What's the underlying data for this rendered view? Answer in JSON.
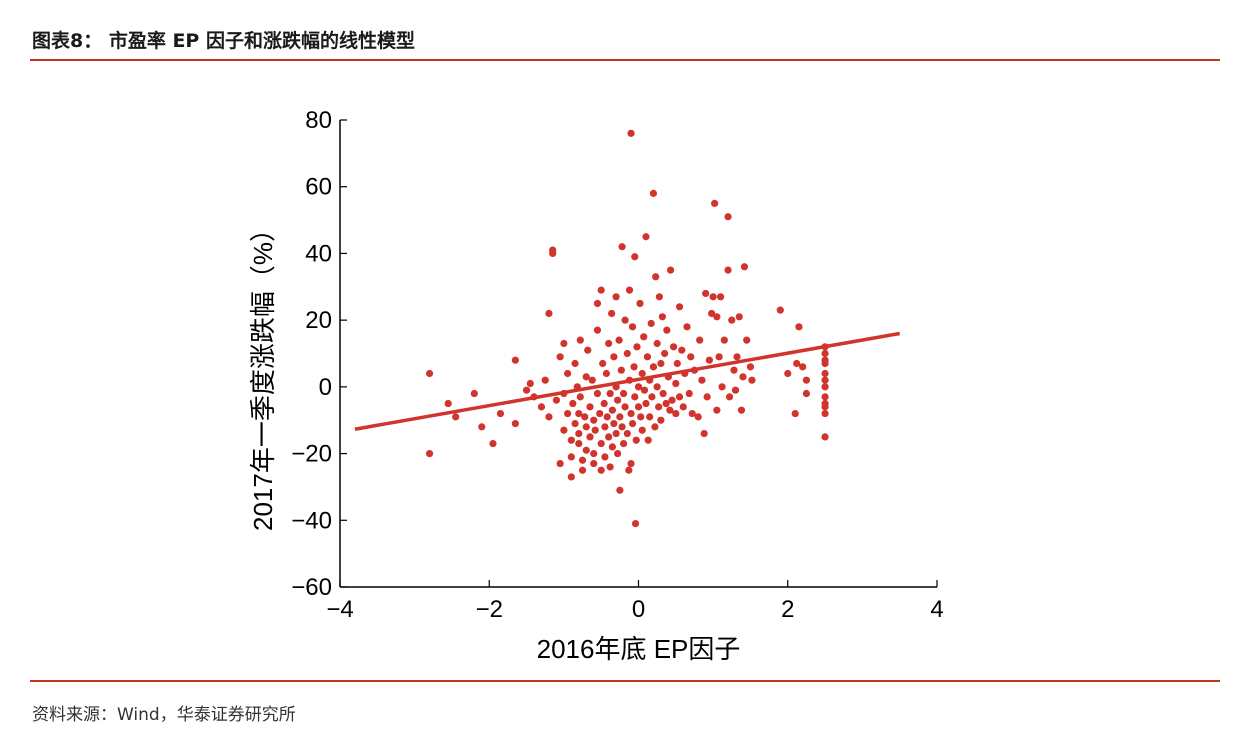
{
  "header": {
    "title": "图表8：  市盈率 EP 因子和涨跌幅的线性模型"
  },
  "footer": {
    "source": "资料来源：Wind，华泰证券研究所"
  },
  "colors": {
    "accent": "#c8321e",
    "points": "#d0342c",
    "fit_line": "#d0342c"
  },
  "chart_data": {
    "type": "scatter",
    "title": "",
    "xlabel": "2016年底 EP因子",
    "ylabel": "2017年一季度涨跌幅（%）",
    "xlim": [
      -4,
      4
    ],
    "ylim": [
      -60,
      80
    ],
    "xticks": [
      -4,
      -2,
      0,
      2,
      4
    ],
    "yticks": [
      -60,
      -40,
      -20,
      0,
      20,
      40,
      60,
      80
    ],
    "xtick_labels": [
      "−4",
      "−2",
      "0",
      "2",
      "4"
    ],
    "ytick_labels": [
      "−60",
      "−40",
      "−20",
      "0",
      "20",
      "40",
      "60",
      "80"
    ],
    "grid": false,
    "fit_line": {
      "x": [
        -3.8,
        3.5
      ],
      "y": [
        -12.7,
        16.0
      ]
    },
    "points": [
      [
        -2.8,
        4
      ],
      [
        -2.8,
        -20
      ],
      [
        -2.55,
        -5
      ],
      [
        -2.45,
        -9
      ],
      [
        -2.2,
        -2
      ],
      [
        -2.1,
        -12
      ],
      [
        -1.95,
        -17
      ],
      [
        -1.85,
        -8
      ],
      [
        -1.65,
        -11
      ],
      [
        -1.65,
        8
      ],
      [
        -1.5,
        -1
      ],
      [
        -1.45,
        1
      ],
      [
        -1.4,
        -3
      ],
      [
        -1.3,
        -6
      ],
      [
        -1.25,
        2
      ],
      [
        -1.2,
        -9
      ],
      [
        -1.2,
        22
      ],
      [
        -1.15,
        41
      ],
      [
        -1.15,
        40
      ],
      [
        -1.1,
        -4
      ],
      [
        -1.05,
        -23
      ],
      [
        -1.05,
        9
      ],
      [
        -1.0,
        -2
      ],
      [
        -1.0,
        -13
      ],
      [
        -1.0,
        13
      ],
      [
        -0.95,
        -8
      ],
      [
        -0.95,
        4
      ],
      [
        -0.9,
        -16
      ],
      [
        -0.9,
        -21
      ],
      [
        -0.9,
        -27
      ],
      [
        -0.88,
        -5
      ],
      [
        -0.85,
        7
      ],
      [
        -0.85,
        -11
      ],
      [
        -0.82,
        0
      ],
      [
        -0.8,
        -14
      ],
      [
        -0.8,
        -8
      ],
      [
        -0.8,
        -17
      ],
      [
        -0.78,
        14
      ],
      [
        -0.78,
        -3
      ],
      [
        -0.75,
        -22
      ],
      [
        -0.75,
        -25
      ],
      [
        -0.72,
        -9
      ],
      [
        -0.7,
        3
      ],
      [
        -0.7,
        -12
      ],
      [
        -0.7,
        -19
      ],
      [
        -0.68,
        11
      ],
      [
        -0.65,
        -6
      ],
      [
        -0.65,
        -15
      ],
      [
        -0.62,
        2
      ],
      [
        -0.6,
        -10
      ],
      [
        -0.6,
        -23
      ],
      [
        -0.6,
        -20
      ],
      [
        -0.58,
        -13
      ],
      [
        -0.55,
        -2
      ],
      [
        -0.55,
        17
      ],
      [
        -0.55,
        25
      ],
      [
        -0.52,
        -8
      ],
      [
        -0.5,
        -17
      ],
      [
        -0.5,
        -25
      ],
      [
        -0.5,
        29
      ],
      [
        -0.48,
        7
      ],
      [
        -0.46,
        -5
      ],
      [
        -0.45,
        -12
      ],
      [
        -0.45,
        -21
      ],
      [
        -0.43,
        4
      ],
      [
        -0.42,
        -9
      ],
      [
        -0.4,
        13
      ],
      [
        -0.4,
        -15
      ],
      [
        -0.38,
        -2
      ],
      [
        -0.38,
        -24
      ],
      [
        -0.36,
        22
      ],
      [
        -0.35,
        -7
      ],
      [
        -0.35,
        -18
      ],
      [
        -0.33,
        9
      ],
      [
        -0.33,
        -11
      ],
      [
        -0.3,
        0
      ],
      [
        -0.3,
        -14
      ],
      [
        -0.3,
        27
      ],
      [
        -0.28,
        -4
      ],
      [
        -0.28,
        -20
      ],
      [
        -0.26,
        14
      ],
      [
        -0.25,
        -9
      ],
      [
        -0.25,
        -31
      ],
      [
        -0.23,
        5
      ],
      [
        -0.22,
        -12
      ],
      [
        -0.22,
        42
      ],
      [
        -0.2,
        -2
      ],
      [
        -0.2,
        -17
      ],
      [
        -0.18,
        20
      ],
      [
        -0.18,
        -6
      ],
      [
        -0.15,
        -14
      ],
      [
        -0.15,
        10
      ],
      [
        -0.13,
        -25
      ],
      [
        -0.12,
        2
      ],
      [
        -0.12,
        29
      ],
      [
        -0.1,
        -8
      ],
      [
        -0.1,
        -23
      ],
      [
        -0.1,
        76
      ],
      [
        -0.08,
        18
      ],
      [
        -0.08,
        -11
      ],
      [
        -0.06,
        6
      ],
      [
        -0.05,
        -3
      ],
      [
        -0.05,
        39
      ],
      [
        -0.04,
        -41
      ],
      [
        -0.03,
        -16
      ],
      [
        -0.02,
        12
      ],
      [
        0,
        0
      ],
      [
        0,
        -6
      ],
      [
        0.02,
        25
      ],
      [
        0.03,
        -9
      ],
      [
        0.05,
        4
      ],
      [
        0.05,
        -13
      ],
      [
        0.07,
        15
      ],
      [
        0.08,
        -1
      ],
      [
        0.1,
        -5
      ],
      [
        0.1,
        45
      ],
      [
        0.12,
        9
      ],
      [
        0.13,
        -16
      ],
      [
        0.15,
        2
      ],
      [
        0.15,
        -9
      ],
      [
        0.17,
        19
      ],
      [
        0.18,
        -3
      ],
      [
        0.2,
        6
      ],
      [
        0.2,
        58
      ],
      [
        0.22,
        -12
      ],
      [
        0.23,
        33
      ],
      [
        0.25,
        0
      ],
      [
        0.25,
        13
      ],
      [
        0.27,
        -6
      ],
      [
        0.28,
        27
      ],
      [
        0.3,
        7
      ],
      [
        0.3,
        -10
      ],
      [
        0.32,
        21
      ],
      [
        0.33,
        -2
      ],
      [
        0.35,
        10
      ],
      [
        0.37,
        -5
      ],
      [
        0.38,
        17
      ],
      [
        0.4,
        3
      ],
      [
        0.42,
        -7
      ],
      [
        0.43,
        35
      ],
      [
        0.45,
        -4
      ],
      [
        0.47,
        12
      ],
      [
        0.5,
        1
      ],
      [
        0.5,
        -8
      ],
      [
        0.52,
        7
      ],
      [
        0.55,
        24
      ],
      [
        0.55,
        -3
      ],
      [
        0.58,
        11
      ],
      [
        0.6,
        -6
      ],
      [
        0.62,
        4
      ],
      [
        0.65,
        18
      ],
      [
        0.68,
        -2
      ],
      [
        0.7,
        9
      ],
      [
        0.72,
        -8
      ],
      [
        0.75,
        5
      ],
      [
        0.8,
        -9
      ],
      [
        0.82,
        14
      ],
      [
        0.85,
        2
      ],
      [
        0.88,
        -14
      ],
      [
        0.9,
        28
      ],
      [
        0.92,
        -3
      ],
      [
        0.95,
        8
      ],
      [
        0.98,
        22
      ],
      [
        1.0,
        27
      ],
      [
        1.02,
        55
      ],
      [
        1.05,
        -7
      ],
      [
        1.05,
        21
      ],
      [
        1.08,
        9
      ],
      [
        1.1,
        27
      ],
      [
        1.12,
        0
      ],
      [
        1.15,
        14
      ],
      [
        1.2,
        51
      ],
      [
        1.2,
        35
      ],
      [
        1.22,
        -3
      ],
      [
        1.25,
        20
      ],
      [
        1.28,
        5
      ],
      [
        1.3,
        -1
      ],
      [
        1.32,
        9
      ],
      [
        1.35,
        21
      ],
      [
        1.38,
        -7
      ],
      [
        1.4,
        3
      ],
      [
        1.42,
        36
      ],
      [
        1.45,
        14
      ],
      [
        1.5,
        6
      ],
      [
        1.52,
        2
      ],
      [
        1.9,
        23
      ],
      [
        2.0,
        4
      ],
      [
        2.1,
        -8
      ],
      [
        2.12,
        7
      ],
      [
        2.15,
        18
      ],
      [
        2.2,
        6
      ],
      [
        2.25,
        -2
      ],
      [
        2.25,
        2
      ],
      [
        2.5,
        12
      ],
      [
        2.5,
        10
      ],
      [
        2.5,
        8
      ],
      [
        2.5,
        7
      ],
      [
        2.5,
        4
      ],
      [
        2.5,
        2
      ],
      [
        2.5,
        0
      ],
      [
        2.5,
        -3
      ],
      [
        2.5,
        -5
      ],
      [
        2.5,
        -6
      ],
      [
        2.5,
        -8
      ],
      [
        2.5,
        -15
      ]
    ]
  }
}
